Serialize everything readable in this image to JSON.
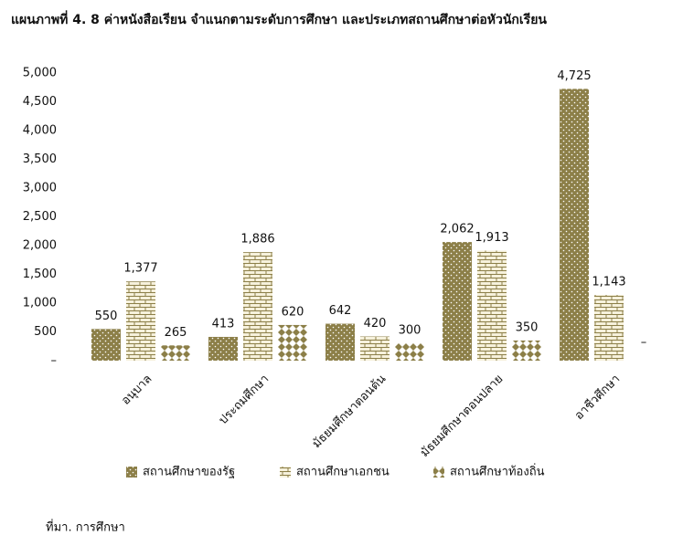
{
  "chart_data": {
    "type": "bar",
    "title": "แผนภาพที่ 4. 8 ค่าหนังสือเรียน จำแนกตามระดับการศึกษา และประเภทสถานศึกษาต่อหัวนักเรียน",
    "categories": [
      "อนุบาล",
      "ประถมศึกษา",
      "มัธยมศึกษาตอนต้น",
      "มัธยมศึกษาตอนปลาย",
      "อาชีวศึกษา"
    ],
    "series": [
      {
        "name": "สถานศึกษาของรัฐ",
        "color": "#8c7f48",
        "values": [
          550,
          413,
          642,
          2062,
          4725
        ],
        "value_labels": [
          "550",
          "413",
          "642",
          "2,062",
          "4,725"
        ]
      },
      {
        "name": "สถานศึกษาเอกชน",
        "color": "#8c7f48",
        "values": [
          1377,
          1886,
          420,
          1913,
          1143
        ],
        "value_labels": [
          "1,377",
          "1,886",
          "420",
          "1,913",
          "1,143"
        ]
      },
      {
        "name": "สถานศึกษาท้องถิ่น",
        "color": "#8c7f48",
        "values": [
          265,
          620,
          300,
          350,
          0
        ],
        "value_labels": [
          "265",
          "620",
          "300",
          "350",
          "–"
        ]
      }
    ],
    "ylim": [
      0,
      5000
    ],
    "yticks": [
      {
        "value": 0,
        "label": "–"
      },
      500,
      {
        "value": 1000,
        "label": "1,000"
      },
      {
        "value": 1500,
        "label": "1,500"
      },
      {
        "value": 2000,
        "label": "2,000"
      },
      {
        "value": 2500,
        "label": "2,500"
      },
      {
        "value": 3000,
        "label": "3,000"
      },
      {
        "value": 3500,
        "label": "3,500"
      },
      {
        "value": 4000,
        "label": "4,000"
      },
      {
        "value": 4500,
        "label": "4,500"
      },
      {
        "value": 5000,
        "label": "5,000"
      }
    ],
    "grid": false,
    "legend": "bottom",
    "source": "ที่มา. การศึกษา"
  }
}
